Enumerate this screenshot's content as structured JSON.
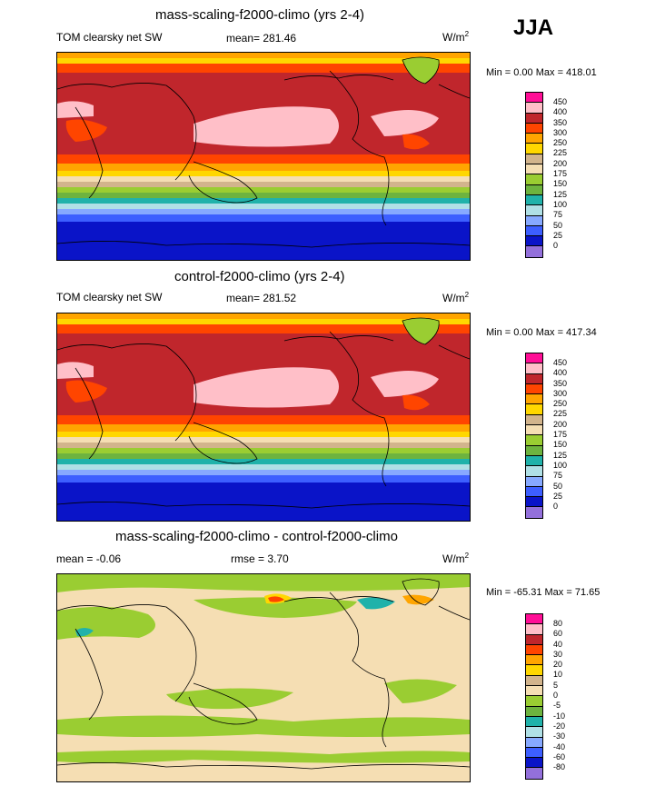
{
  "season": "JJA",
  "panels": [
    {
      "title": "mass-scaling-f2000-climo (yrs 2-4)",
      "left_label": "TOM clearsky net SW",
      "center_label": "mean= 281.46",
      "unit": "W/m",
      "unit_sup": "2",
      "minmax": "Min =   0.00 Max = 418.01",
      "levels": [
        "450",
        "400",
        "350",
        "300",
        "250",
        "225",
        "200",
        "175",
        "150",
        "125",
        "100",
        "75",
        "50",
        "25",
        "0"
      ],
      "colors": [
        "#ff0f96",
        "#ffbfc8",
        "#c0262c",
        "#ff4500",
        "#ffa500",
        "#ffd700",
        "#d2b48c",
        "#f5deb3",
        "#9acd32",
        "#6db33f",
        "#20b2aa",
        "#b0e0e6",
        "#87a9ff",
        "#3d5fff",
        "#0a14c8",
        "#9370db"
      ]
    },
    {
      "title": "control-f2000-climo (yrs 2-4)",
      "left_label": "TOM clearsky net SW",
      "center_label": "mean= 281.52",
      "unit": "W/m",
      "unit_sup": "2",
      "minmax": "Min =   0.00 Max = 417.34",
      "levels": [
        "450",
        "400",
        "350",
        "300",
        "250",
        "225",
        "200",
        "175",
        "150",
        "125",
        "100",
        "75",
        "50",
        "25",
        "0"
      ],
      "colors": [
        "#ff0f96",
        "#ffbfc8",
        "#c0262c",
        "#ff4500",
        "#ffa500",
        "#ffd700",
        "#d2b48c",
        "#f5deb3",
        "#9acd32",
        "#6db33f",
        "#20b2aa",
        "#b0e0e6",
        "#87a9ff",
        "#3d5fff",
        "#0a14c8",
        "#9370db"
      ]
    },
    {
      "title": "mass-scaling-f2000-climo - control-f2000-climo",
      "left_label": "mean =  -0.06",
      "center_label": "rmse =   3.70",
      "unit": "W/m",
      "unit_sup": "2",
      "minmax": "Min = -65.31 Max =  71.65",
      "levels": [
        "80",
        "60",
        "40",
        "30",
        "20",
        "10",
        "5",
        "0",
        "-5",
        "-10",
        "-20",
        "-30",
        "-40",
        "-60",
        "-80"
      ],
      "colors": [
        "#ff0f96",
        "#ffbfc8",
        "#c0262c",
        "#ff4500",
        "#ffa500",
        "#ffd700",
        "#d2b48c",
        "#f5deb3",
        "#9acd32",
        "#6db33f",
        "#20b2aa",
        "#b0e0e6",
        "#87a9ff",
        "#3d5fff",
        "#0a14c8",
        "#9370db"
      ]
    }
  ]
}
